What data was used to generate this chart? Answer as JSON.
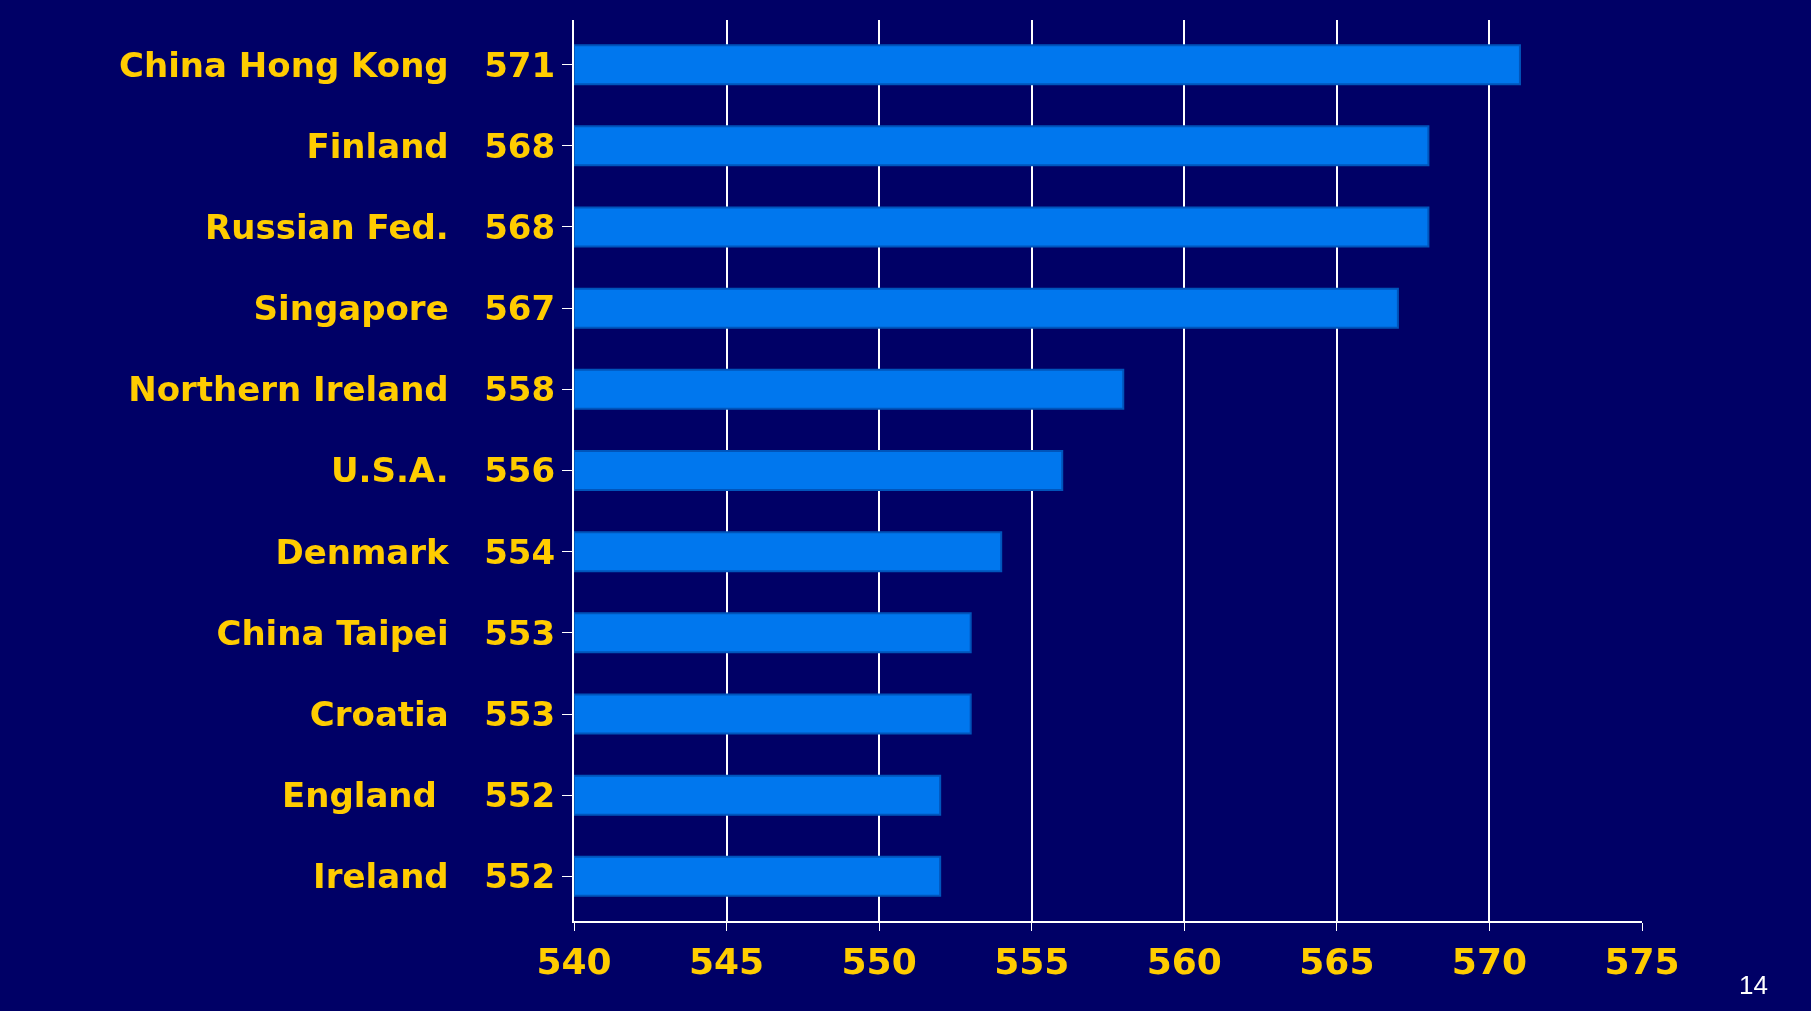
{
  "chart_data": {
    "type": "bar",
    "orientation": "horizontal",
    "categories": [
      "China Hong Kong  571",
      "Finland  568",
      "Russian Fed.  568",
      "Singapore  567",
      "Northern Ireland  558",
      "U.S.A.  556",
      "Denmark  554",
      "China Taipei  553",
      "Croatia  553",
      "England   552",
      "Ireland  552"
    ],
    "values": [
      571,
      568,
      568,
      567,
      558,
      556,
      554,
      553,
      553,
      552,
      552
    ],
    "color": "#0077ee",
    "xlim": [
      540,
      575
    ],
    "xticks": [
      540,
      545,
      550,
      555,
      560,
      565,
      570,
      575
    ],
    "grid": "x",
    "annotations": [
      "14"
    ]
  }
}
